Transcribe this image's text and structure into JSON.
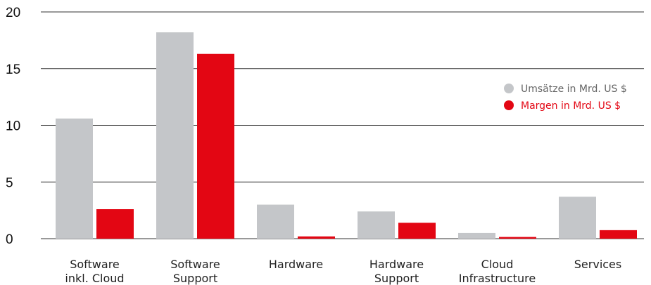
{
  "chart_data": {
    "type": "bar",
    "title": "",
    "xlabel": "",
    "ylabel": "",
    "ylim": [
      0,
      20
    ],
    "yticks": [
      0,
      5,
      10,
      15,
      20
    ],
    "grid": true,
    "legend_position": "right",
    "categories": [
      [
        "Software",
        "inkl. Cloud"
      ],
      [
        "Software",
        "Support"
      ],
      [
        "Hardware"
      ],
      [
        "Hardware",
        "Support"
      ],
      [
        "Cloud",
        "Infrastructure"
      ],
      [
        "Services"
      ]
    ],
    "series": [
      {
        "name": "Umsätze in Mrd. US $",
        "color": "#c4c6c9",
        "values": [
          10.6,
          18.2,
          3.0,
          2.4,
          0.5,
          3.7
        ]
      },
      {
        "name": "Margen in Mrd. US $",
        "color": "#e30613",
        "values": [
          2.6,
          16.3,
          0.2,
          1.4,
          0.15,
          0.75
        ]
      }
    ]
  }
}
